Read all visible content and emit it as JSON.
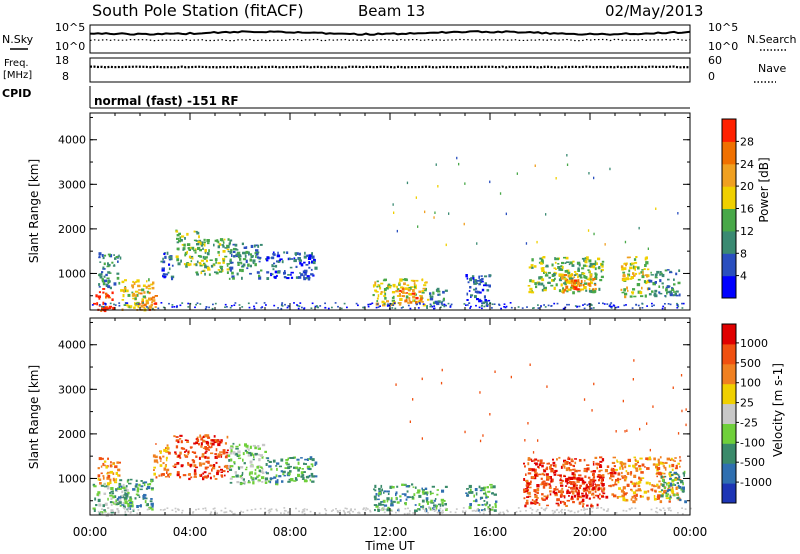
{
  "header": {
    "station": "South Pole Station (fitACF)",
    "beam": "Beam 13",
    "date": "02/May/2013"
  },
  "top_panel": {
    "left_label": "N.Sky",
    "right_label": "N.Search",
    "y_ticks_left": [
      "10^5",
      "10^0"
    ],
    "y_ticks_right": [
      "10^5",
      "10^0"
    ]
  },
  "freq_panel": {
    "left_label_1": "Freq.",
    "left_label_2": "[MHz]",
    "right_label": "Nave",
    "y_ticks_left": [
      "18",
      "8"
    ],
    "y_ticks_right": [
      "60",
      "0"
    ]
  },
  "cpid": {
    "label": "CPID",
    "text": "normal (fast) -151 RF"
  },
  "x_axis": {
    "label": "Time UT",
    "ticks": [
      "00:00",
      "04:00",
      "08:00",
      "12:00",
      "16:00",
      "20:00",
      "00:00"
    ]
  },
  "chart_data": [
    {
      "type": "heatmap",
      "name": "power",
      "ylabel": "Slant Range [km]",
      "xlabel": "Time UT",
      "xlim_hours": [
        0,
        24
      ],
      "ylim": [
        180,
        4600
      ],
      "y_ticks": [
        1000,
        2000,
        3000,
        4000
      ],
      "colorbar": {
        "label": "Power [dB]",
        "tick_labels": [
          "4",
          "8",
          "12",
          "16",
          "20",
          "24",
          "28"
        ],
        "colors": [
          "#0000ff",
          "#2a4fbf",
          "#3a8a72",
          "#48a848",
          "#f0d000",
          "#f0a020",
          "#f07000",
          "#ff2000"
        ]
      },
      "regions": [
        {
          "t": [
            0.1,
            0.9
          ],
          "r": [
            180,
            700
          ],
          "level": 7
        },
        {
          "t": [
            0.3,
            1.2
          ],
          "r": [
            700,
            1500
          ],
          "level": 2
        },
        {
          "t": [
            1.2,
            2.5
          ],
          "r": [
            200,
            900
          ],
          "level": 4
        },
        {
          "t": [
            1.9,
            2.6
          ],
          "r": [
            200,
            600
          ],
          "level": 6
        },
        {
          "t": [
            2.8,
            3.3
          ],
          "r": [
            900,
            1500
          ],
          "level": 1
        },
        {
          "t": [
            3.4,
            4.4
          ],
          "r": [
            1200,
            2000
          ],
          "level": 3
        },
        {
          "t": [
            4.2,
            5.6
          ],
          "r": [
            1000,
            1800
          ],
          "level": 3
        },
        {
          "t": [
            5.5,
            6.8
          ],
          "r": [
            900,
            1700
          ],
          "level": 2
        },
        {
          "t": [
            7.0,
            9.0
          ],
          "r": [
            900,
            1500
          ],
          "level": 1
        },
        {
          "t": [
            11.3,
            13.5
          ],
          "r": [
            300,
            900
          ],
          "level": 4
        },
        {
          "t": [
            12.3,
            13.2
          ],
          "r": [
            350,
            700
          ],
          "level": 6
        },
        {
          "t": [
            13.5,
            14.2
          ],
          "r": [
            300,
            700
          ],
          "level": 2
        },
        {
          "t": [
            15.0,
            16.0
          ],
          "r": [
            300,
            1000
          ],
          "level": 1
        },
        {
          "t": [
            17.5,
            20.5
          ],
          "r": [
            600,
            1400
          ],
          "level": 3
        },
        {
          "t": [
            18.8,
            20.2
          ],
          "r": [
            600,
            1000
          ],
          "level": 5
        },
        {
          "t": [
            19.2,
            19.8
          ],
          "r": [
            650,
            900
          ],
          "level": 7
        },
        {
          "t": [
            21.2,
            22.3
          ],
          "r": [
            500,
            1400
          ],
          "level": 4
        },
        {
          "t": [
            22.3,
            23.6
          ],
          "r": [
            500,
            1100
          ],
          "level": 2
        }
      ]
    },
    {
      "type": "heatmap",
      "name": "velocity",
      "ylabel": "Slant Range [km]",
      "xlabel": "Time UT",
      "xlim_hours": [
        0,
        24
      ],
      "ylim": [
        180,
        4600
      ],
      "y_ticks": [
        1000,
        2000,
        3000,
        4000
      ],
      "colorbar": {
        "label": "Velocity [m s-1]",
        "tick_labels": [
          "1000",
          "500",
          "100",
          "25",
          "-25",
          "-100",
          "-500",
          "-1000"
        ],
        "colors": [
          "#1d35b5",
          "#2f6fb0",
          "#3a8a6a",
          "#6fcf3a",
          "#c8c8c8",
          "#f0d000",
          "#f08020",
          "#f05010",
          "#e00000"
        ]
      },
      "regions": [
        {
          "t": [
            0.1,
            1.5
          ],
          "r": [
            180,
            900
          ],
          "level": 3
        },
        {
          "t": [
            1.0,
            2.5
          ],
          "r": [
            300,
            1000
          ],
          "level": 2
        },
        {
          "t": [
            0.3,
            1.2
          ],
          "r": [
            900,
            1500
          ],
          "level": 6
        },
        {
          "t": [
            2.5,
            3.2
          ],
          "r": [
            1000,
            1800
          ],
          "level": 6
        },
        {
          "t": [
            3.3,
            5.5
          ],
          "r": [
            1000,
            2000
          ],
          "level": 7
        },
        {
          "t": [
            5.5,
            7.0
          ],
          "r": [
            900,
            1800
          ],
          "level": 3
        },
        {
          "t": [
            7.0,
            9.0
          ],
          "r": [
            900,
            1500
          ],
          "level": 2
        },
        {
          "t": [
            11.3,
            14.2
          ],
          "r": [
            300,
            900
          ],
          "level": 2
        },
        {
          "t": [
            15.0,
            16.2
          ],
          "r": [
            300,
            900
          ],
          "level": 2
        },
        {
          "t": [
            17.3,
            21.0
          ],
          "r": [
            400,
            1500
          ],
          "level": 7
        },
        {
          "t": [
            19.0,
            20.5
          ],
          "r": [
            500,
            1100
          ],
          "level": 8
        },
        {
          "t": [
            21.0,
            23.6
          ],
          "r": [
            500,
            1500
          ],
          "level": 6
        },
        {
          "t": [
            22.8,
            23.8
          ],
          "r": [
            500,
            1200
          ],
          "level": 2
        }
      ]
    }
  ]
}
